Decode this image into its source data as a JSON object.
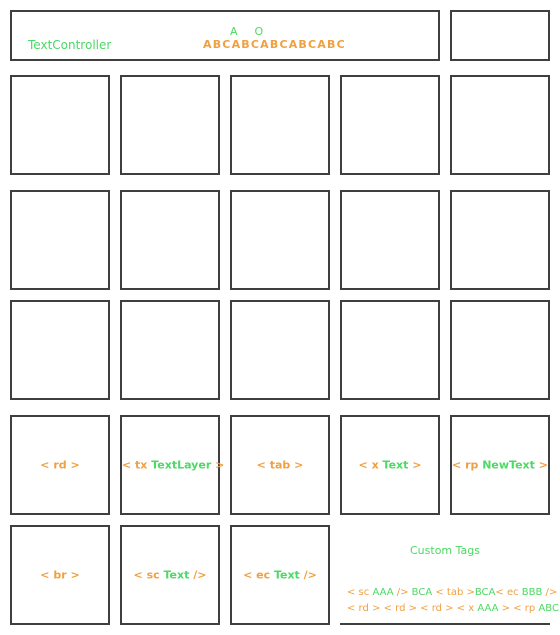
{
  "header": {
    "controller_label": "TextController",
    "top_letters": [
      "A",
      "O"
    ],
    "sequence": "ABCABCABCABCABC"
  },
  "cells": {
    "rd": {
      "open": "< rd >"
    },
    "tx": {
      "open": "< tx ",
      "text": "TextLayer",
      "close": " >"
    },
    "tab": {
      "open": "< tab >"
    },
    "x": {
      "open": "< x ",
      "text": "Text",
      "close": " >"
    },
    "rp": {
      "open": "< rp ",
      "text": "NewText",
      "close": " >"
    },
    "br": {
      "open": "< br >"
    },
    "sc": {
      "open": "< sc ",
      "text": "Text",
      "close": " />"
    },
    "ec": {
      "open": "< ec ",
      "text": "Text",
      "close": " />"
    }
  },
  "custom_tags": {
    "title": "Custom Tags",
    "line1": [
      {
        "t": "< sc ",
        "c": "o"
      },
      {
        "t": "AAA",
        "c": "g"
      },
      {
        "t": " /> ",
        "c": "o"
      },
      {
        "t": "BCA",
        "c": "g"
      },
      {
        "t": " < tab >",
        "c": "o"
      },
      {
        "t": "BCA",
        "c": "g"
      },
      {
        "t": "< ec ",
        "c": "o"
      },
      {
        "t": "BBB",
        "c": "g"
      },
      {
        "t": " />",
        "c": "o"
      }
    ],
    "line2": [
      {
        "t": "< rd > < rd > < rd > < x ",
        "c": "o"
      },
      {
        "t": "AAA",
        "c": "g"
      },
      {
        "t": " > < rp ",
        "c": "o"
      },
      {
        "t": "ABC",
        "c": "g"
      },
      {
        "t": " >",
        "c": "o"
      }
    ]
  },
  "colors": {
    "tag_orange": "#f0a040",
    "text_green": "#4cd964",
    "border": "#3f3f3f"
  }
}
